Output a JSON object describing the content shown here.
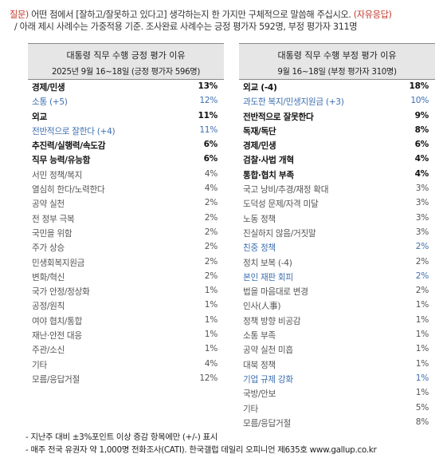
{
  "question": {
    "prefix": "질문)",
    "text": " 어떤 점에서 [잘하고/잘못하고 있다고] 생각하는지 한 가지만 구체적으로 말씀해 주십시오. ",
    "suffix": "(자유응답)",
    "note": "/ 아래 제시 사례수는 가중적용 기준. 조사완료 사례수는 긍정 평가자 592명, 부정 평가자 311명"
  },
  "positive": {
    "title": "대통령 직무 수행 긍정 평가 이유",
    "subtitle": "2025년 9월 16~18일 (긍정 평가자 596명)",
    "rows": [
      {
        "label": "경제/민생",
        "value": "13%",
        "style": "bold"
      },
      {
        "label": "소통 (+5)",
        "value": "12%",
        "style": "blue"
      },
      {
        "label": "외교",
        "value": "11%",
        "style": "bold"
      },
      {
        "label": "전반적으로 잘한다 (+4)",
        "value": "11%",
        "style": "blue"
      },
      {
        "label": "추진력/실행력/속도감",
        "value": "6%",
        "style": "bold"
      },
      {
        "label": "직무 능력/유능함",
        "value": "6%",
        "style": "bold"
      },
      {
        "label": "서민 정책/복지",
        "value": "4%",
        "style": "gray"
      },
      {
        "label": "열심히 한다/노력한다",
        "value": "4%",
        "style": "gray"
      },
      {
        "label": "공약 실천",
        "value": "2%",
        "style": "gray"
      },
      {
        "label": "전 정부 극복",
        "value": "2%",
        "style": "gray"
      },
      {
        "label": "국민을 위함",
        "value": "2%",
        "style": "gray"
      },
      {
        "label": "주가 상승",
        "value": "2%",
        "style": "gray"
      },
      {
        "label": "민생회복지원금",
        "value": "2%",
        "style": "gray"
      },
      {
        "label": "변화/혁신",
        "value": "2%",
        "style": "gray"
      },
      {
        "label": "국가 안정/정상화",
        "value": "1%",
        "style": "gray"
      },
      {
        "label": "공정/원칙",
        "value": "1%",
        "style": "gray"
      },
      {
        "label": "여야 협치/통합",
        "value": "1%",
        "style": "gray"
      },
      {
        "label": "재난·안전 대응",
        "value": "1%",
        "style": "gray"
      },
      {
        "label": "주관/소신",
        "value": "1%",
        "style": "gray"
      },
      {
        "label": "기타",
        "value": "4%",
        "style": "gray"
      },
      {
        "label": "모름/응답거절",
        "value": "12%",
        "style": "gray"
      }
    ]
  },
  "negative": {
    "title": "대통령 직무 수행 부정 평가 이유",
    "subtitle": "9월 16~18일 (부정 평가자 310명)",
    "rows": [
      {
        "label": "외교 (-4)",
        "value": "18%",
        "style": "bold"
      },
      {
        "label": "과도한 복지/민생지원금 (+3)",
        "value": "10%",
        "style": "blue"
      },
      {
        "label": "전반적으로 잘못한다",
        "value": "9%",
        "style": "bold"
      },
      {
        "label": "독재/독단",
        "value": "8%",
        "style": "bold"
      },
      {
        "label": "경제/민생",
        "value": "6%",
        "style": "bold"
      },
      {
        "label": "검찰·사법 개혁",
        "value": "4%",
        "style": "bold"
      },
      {
        "label": "통합·협치 부족",
        "value": "4%",
        "style": "bold"
      },
      {
        "label": "국고 낭비/추경/재정 확대",
        "value": "3%",
        "style": "gray"
      },
      {
        "label": "도덕성 문제/자격 미달",
        "value": "3%",
        "style": "gray"
      },
      {
        "label": "노동 정책",
        "value": "3%",
        "style": "gray"
      },
      {
        "label": "진실하지 않음/거짓말",
        "value": "3%",
        "style": "gray"
      },
      {
        "label": "친중 정책",
        "value": "2%",
        "style": "blue"
      },
      {
        "label": "정치 보복 (-4)",
        "value": "2%",
        "style": "gray"
      },
      {
        "label": "본인 재판 회피",
        "value": "2%",
        "style": "blue"
      },
      {
        "label": "법을 마음대로 변경",
        "value": "2%",
        "style": "gray"
      },
      {
        "label": "인사(人事)",
        "value": "1%",
        "style": "gray"
      },
      {
        "label": "정책 방향 비공감",
        "value": "1%",
        "style": "gray"
      },
      {
        "label": "소통 부족",
        "value": "1%",
        "style": "gray"
      },
      {
        "label": "공약 실천 미흡",
        "value": "1%",
        "style": "gray"
      },
      {
        "label": "대북 정책",
        "value": "1%",
        "style": "gray"
      },
      {
        "label": "기업 규제 강화",
        "value": "1%",
        "style": "blue"
      },
      {
        "label": "국방/안보",
        "value": "1%",
        "style": "gray"
      },
      {
        "label": "기타",
        "value": "5%",
        "style": "gray"
      },
      {
        "label": "모름/응답거절",
        "value": "8%",
        "style": "gray"
      }
    ]
  },
  "footnotes": [
    "- 지난주 대비 ±3%포인트 이상 증감 항목에만 (+/-) 표시",
    "- 매주 전국 유권자 약 1,000명 전화조사(CATI). 한국갤럽 데일리 오피니언 제635호 www.gallup.co.kr"
  ]
}
